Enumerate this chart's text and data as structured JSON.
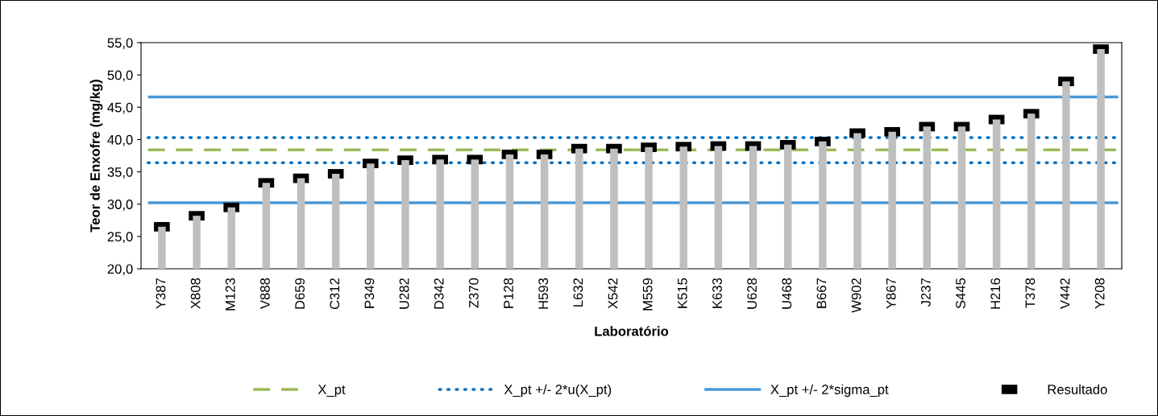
{
  "chart_data": {
    "type": "bar",
    "xlabel": "Laboratório",
    "ylabel": "Teor de Enxofre (mg/kg)",
    "categories": [
      "Y387",
      "X808",
      "M123",
      "V888",
      "D659",
      "C312",
      "P349",
      "U282",
      "D342",
      "Z370",
      "P128",
      "H593",
      "L632",
      "X542",
      "M559",
      "K515",
      "K633",
      "U628",
      "U468",
      "B667",
      "W902",
      "Y867",
      "J237",
      "S445",
      "H216",
      "T378",
      "V442",
      "Y208"
    ],
    "series": [
      {
        "color": "#bfbfbf",
        "values": [
          26.5,
          28.2,
          29.5,
          33.3,
          34.0,
          34.7,
          36.3,
          36.8,
          36.9,
          36.9,
          37.7,
          37.7,
          38.6,
          38.6,
          38.8,
          38.9,
          39.0,
          39.0,
          39.2,
          39.7,
          41.0,
          41.2,
          42.0,
          42.0,
          43.1,
          44.0,
          49.0,
          54.0
        ]
      },
      {
        "type": "scatter",
        "name": "Resultado",
        "color": "#000000",
        "values": [
          26.5,
          28.2,
          29.5,
          33.3,
          34.0,
          34.7,
          36.3,
          36.8,
          36.9,
          36.9,
          37.7,
          37.7,
          38.6,
          38.6,
          38.8,
          38.9,
          39.0,
          39.0,
          39.2,
          39.7,
          41.0,
          41.2,
          42.0,
          42.0,
          43.1,
          44.0,
          49.0,
          54.0
        ]
      }
    ],
    "ref_lines": [
      {
        "axis": "y",
        "value": 38.4,
        "label": "X_pt",
        "color": "#9bbb59",
        "line_style": "dashed"
      },
      {
        "axis": "y",
        "value": 40.3,
        "label": "X_pt +/- 2*u(X_pt)",
        "color": "#0070c0",
        "line_style": "dotted"
      },
      {
        "axis": "y",
        "value": 36.4,
        "label": null,
        "color": "#0070c0",
        "line_style": "dotted"
      },
      {
        "axis": "y",
        "value": 46.6,
        "label": "X_pt +/- 2*sigma_pt",
        "color": "#4a98d6",
        "line_style": "solid"
      },
      {
        "axis": "y",
        "value": 30.2,
        "label": null,
        "color": "#4a98d6",
        "line_style": "solid"
      }
    ],
    "ylim": [
      20,
      55
    ],
    "yticks": [
      {
        "value": 20,
        "label": "20,0"
      },
      {
        "value": 25,
        "label": "25,0"
      },
      {
        "value": 30,
        "label": "30,0"
      },
      {
        "value": 35,
        "label": "35,0"
      },
      {
        "value": 40,
        "label": "40,0"
      },
      {
        "value": 45,
        "label": "45,0"
      },
      {
        "value": 50,
        "label": "50,0"
      },
      {
        "value": 55,
        "label": "55,0"
      }
    ],
    "grid": false,
    "legend": "bottom"
  }
}
